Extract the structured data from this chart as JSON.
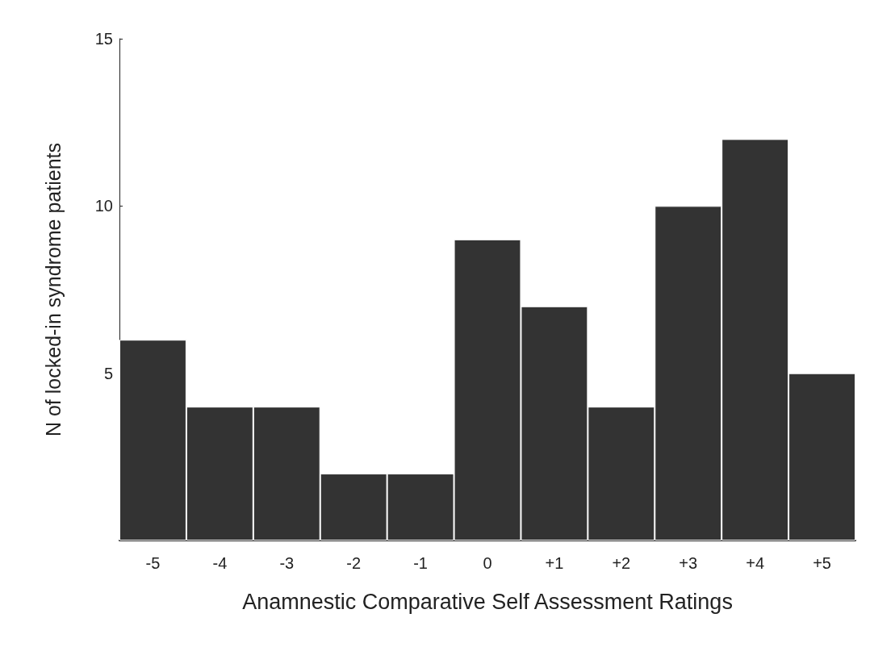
{
  "chart_data": {
    "type": "bar",
    "xlabel": "Anamnestic Comparative Self Assessment Ratings",
    "ylabel": "N of locked-in syndrome patients",
    "categories": [
      "-5",
      "-4",
      "-3",
      "-2",
      "-1",
      "0",
      "+1",
      "+2",
      "+3",
      "+4",
      "+5"
    ],
    "values": [
      6,
      4,
      4,
      2,
      2,
      9,
      7,
      4,
      10,
      12,
      5
    ],
    "color": "#333333",
    "ylim": [
      0,
      15
    ],
    "yticks": [
      5,
      10,
      15
    ],
    "grid": false
  }
}
